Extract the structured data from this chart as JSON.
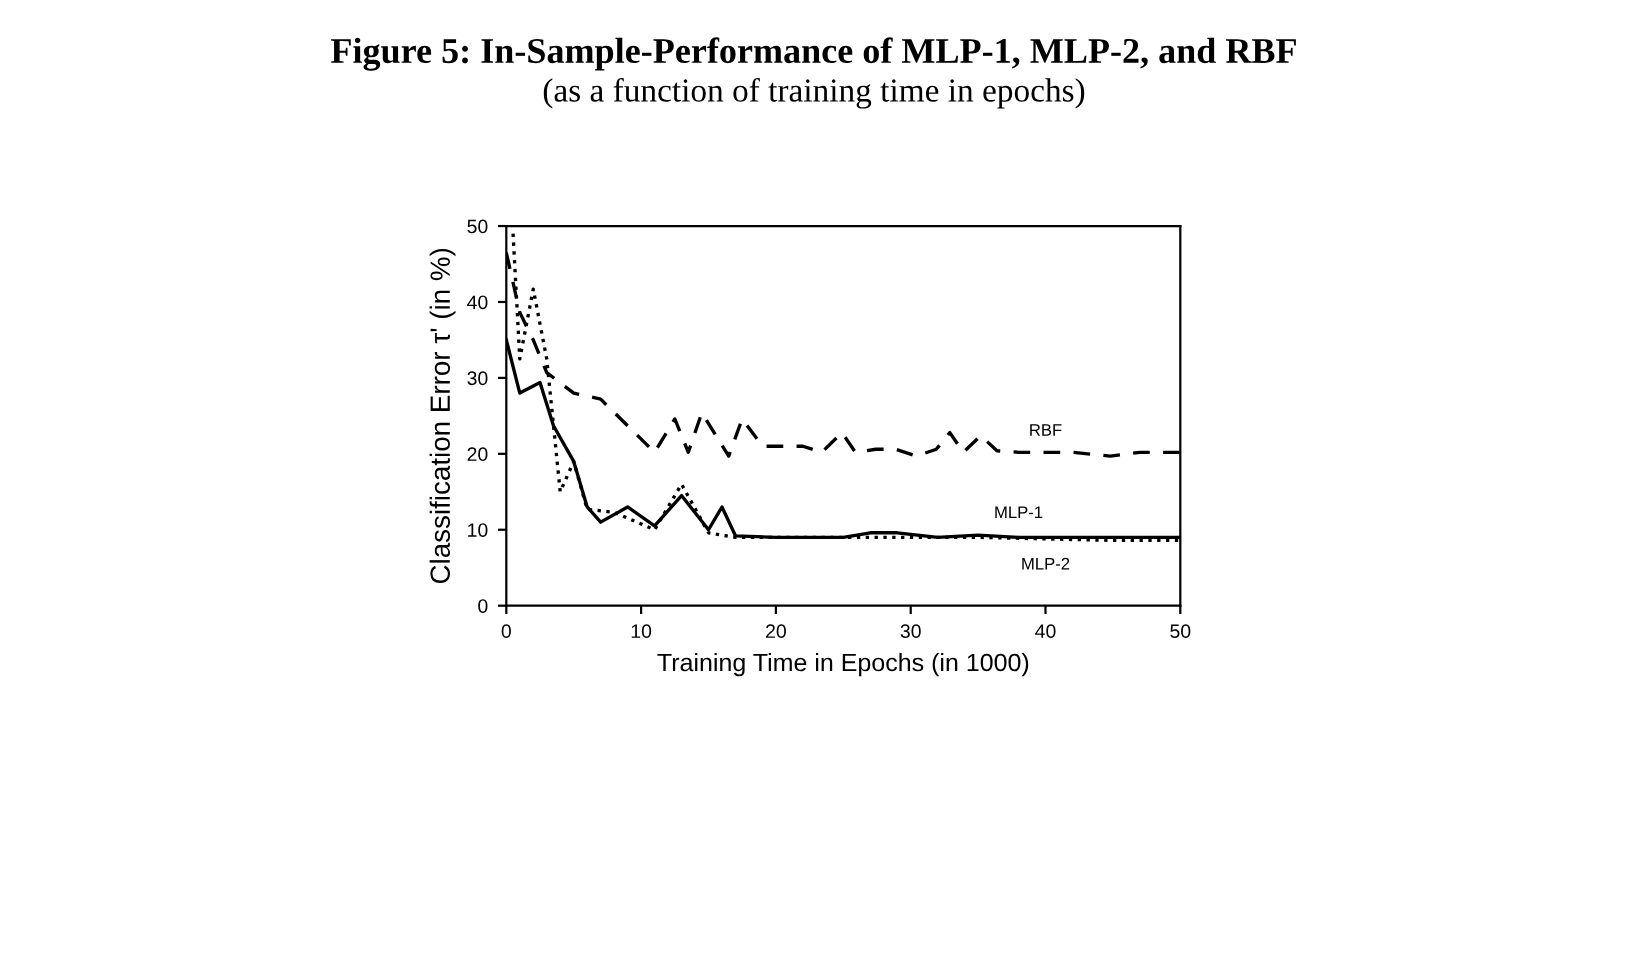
{
  "chart_data": {
    "type": "line",
    "title": "Figure 5: In-Sample-Performance of MLP-1, MLP-2, and RBF",
    "subtitle": "(as a function of training time in epochs)",
    "xlabel": "Training Time in Epochs (in 1000)",
    "ylabel": "Classification Error τ' (in %)",
    "xlim": [
      0,
      50
    ],
    "ylim": [
      0,
      50
    ],
    "xticks": [
      0,
      10,
      20,
      30,
      40,
      50
    ],
    "yticks": [
      0,
      10,
      20,
      30,
      40,
      50
    ],
    "grid": false,
    "legend": false,
    "marker": "none",
    "series": [
      {
        "name": "RBF",
        "color": "#000000",
        "line_style": "dashed",
        "x": [
          0,
          1,
          2,
          3,
          5,
          7,
          9,
          11,
          12.5,
          13.5,
          14.5,
          16.5,
          17.5,
          19,
          22,
          23.4,
          24.9,
          25.9,
          27.4,
          28.9,
          30.4,
          31.9,
          32.9,
          33.9,
          35.2,
          36.4,
          38,
          40,
          42,
          44.8,
          47,
          50
        ],
        "values": [
          46.5,
          38.6,
          35,
          30.7,
          28,
          27.2,
          23.7,
          20.2,
          24.6,
          20.2,
          25.4,
          19.7,
          24.6,
          21,
          21,
          20.2,
          22.8,
          20.2,
          20.6,
          20.6,
          19.7,
          20.6,
          22.8,
          20.2,
          22.4,
          20.4,
          20.2,
          20.2,
          20.2,
          19.7,
          20.2,
          20.2
        ]
      },
      {
        "name": "MLP-1",
        "color": "#000000",
        "line_style": "solid",
        "x": [
          0,
          1,
          2.5,
          3.5,
          5,
          6,
          7,
          9,
          11,
          13,
          15,
          16,
          17,
          20,
          25,
          27,
          29,
          32,
          35,
          38,
          42,
          46,
          50
        ],
        "values": [
          35,
          28,
          29.4,
          23.7,
          19,
          13,
          11,
          13,
          10.5,
          14.5,
          10,
          13,
          9.2,
          9,
          9,
          9.6,
          9.6,
          9,
          9.3,
          9,
          9,
          9,
          9
        ]
      },
      {
        "name": "MLP-2",
        "color": "#000000",
        "line_style": "dotted",
        "x": [
          0.5,
          1,
          2,
          3,
          4,
          5,
          6,
          8,
          11,
          13,
          15,
          17,
          20,
          25,
          30,
          35,
          40,
          45,
          50
        ],
        "values": [
          49,
          32.5,
          41.7,
          32.5,
          15,
          19,
          12.7,
          12.3,
          10,
          16,
          9.6,
          9,
          9,
          9,
          9,
          9,
          8.8,
          8.6,
          8.6
        ]
      }
    ]
  }
}
